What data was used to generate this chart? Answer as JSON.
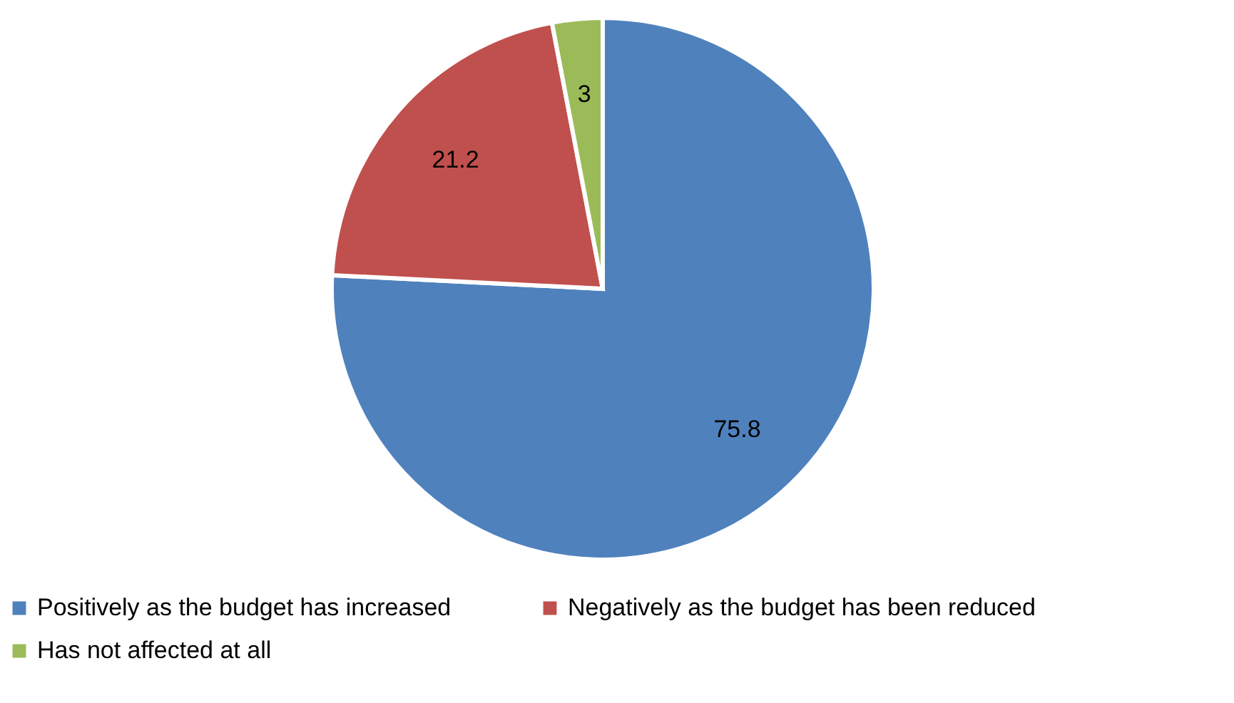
{
  "chart_data": {
    "type": "pie",
    "categories": [
      "Positively as the budget has increased",
      "Negatively as the budget has been reduced",
      "Has not affected at all"
    ],
    "values": [
      75.8,
      21.2,
      3
    ],
    "colors": [
      "#4f81bd",
      "#c0504d",
      "#9bbb59"
    ],
    "data_labels": true,
    "legend": "bottom"
  }
}
